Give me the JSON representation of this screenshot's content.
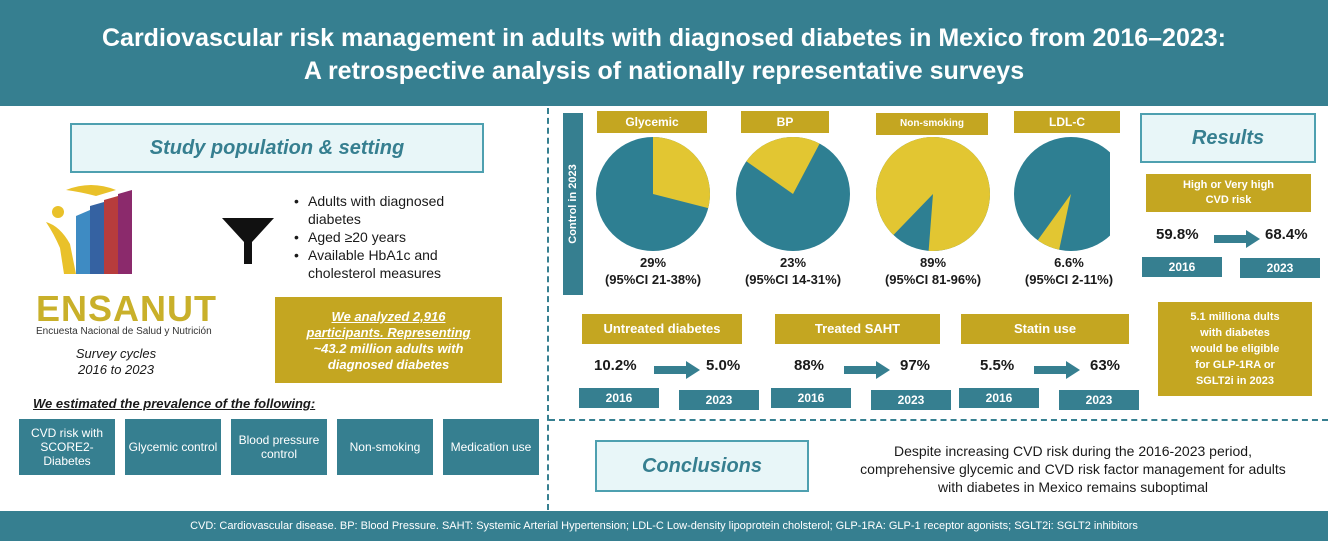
{
  "header": {
    "title_line1": "Cardiovascular risk management in adults with diagnosed diabetes in Mexico from 2016–2023:",
    "title_line2": "A retrospective analysis of nationally representative surveys"
  },
  "study": {
    "title": "Study population & setting",
    "logo_name": "ENSANUT",
    "logo_subtitle": "Encuesta Nacional de Salud y Nutrición",
    "cycles_line1": "Survey cycles",
    "cycles_line2": "2016 to 2023",
    "criteria": [
      "Adults with diagnosed diabetes",
      "Aged ≥20 years",
      "Available HbA1c and cholesterol measures"
    ],
    "analyzed_line1": "We analyzed 2,916",
    "analyzed_line2": "participants. Representing",
    "analyzed_line3": "~43.2 million adults with",
    "analyzed_line4": "diagnosed diabetes",
    "estimated_title": "We estimated the prevalence of the following:",
    "outcomes": [
      "CVD risk with SCORE2-Diabetes",
      "Glycemic control",
      "Blood pressure control",
      "Non-smoking",
      "Medication use"
    ]
  },
  "control": {
    "label": "Control in 2023",
    "pies": [
      {
        "label": "Glycemic",
        "value": 29,
        "pct": "29%",
        "ci": "(95%CI 21-38%)"
      },
      {
        "label": "BP",
        "value": 23,
        "pct": "23%",
        "ci": "(95%CI 14-31%)"
      },
      {
        "label": "Non-smoking",
        "value": 89,
        "pct": "89%",
        "ci": "(95%CI 81-96%)"
      },
      {
        "label": "LDL-C",
        "value": 6.6,
        "pct": "6.6%",
        "ci": "(95%CI 2-11%)"
      }
    ],
    "colors": {
      "filled": "#e2c632",
      "rest": "#2e7f92"
    }
  },
  "trends": [
    {
      "label": "Untreated diabetes",
      "from": "10.2%",
      "to": "5.0%",
      "year_from": "2016",
      "year_to": "2023"
    },
    {
      "label": "Treated SAHT",
      "from": "88%",
      "to": "97%",
      "year_from": "2016",
      "year_to": "2023"
    },
    {
      "label": "Statin use",
      "from": "5.5%",
      "to": "63%",
      "year_from": "2016",
      "year_to": "2023"
    }
  ],
  "results": {
    "title": "Results",
    "risk_label_line1": "High or Very high",
    "risk_label_line2": "CVD risk",
    "from": "59.8%",
    "to": "68.4%",
    "year_from": "2016",
    "year_to": "2023",
    "eligible_line1": "5.1 milliona dults",
    "eligible_line2": "with diabetes",
    "eligible_line3": "would be eligible",
    "eligible_line4": "for GLP-1RA or",
    "eligible_line5": "SGLT2i in 2023"
  },
  "conclusions": {
    "title": "Conclusions",
    "line1": "Despite increasing CVD risk during the 2016-2023 period,",
    "line2": "comprehensive glycemic and CVD risk factor management for adults",
    "line3": "with diabetes in Mexico remains suboptimal"
  },
  "footer": {
    "text": "CVD: Cardiovascular disease. BP: Blood Pressure. SAHT: Systemic Arterial Hypertension; LDL-C Low-density lipoprotein cholsterol; GLP-1RA: GLP-1 receptor agonists; SGLT2i: SGLT2 inhibitors"
  },
  "colors": {
    "teal": "#367f90",
    "gold": "#c4a621",
    "light": "#e8f6f8"
  }
}
